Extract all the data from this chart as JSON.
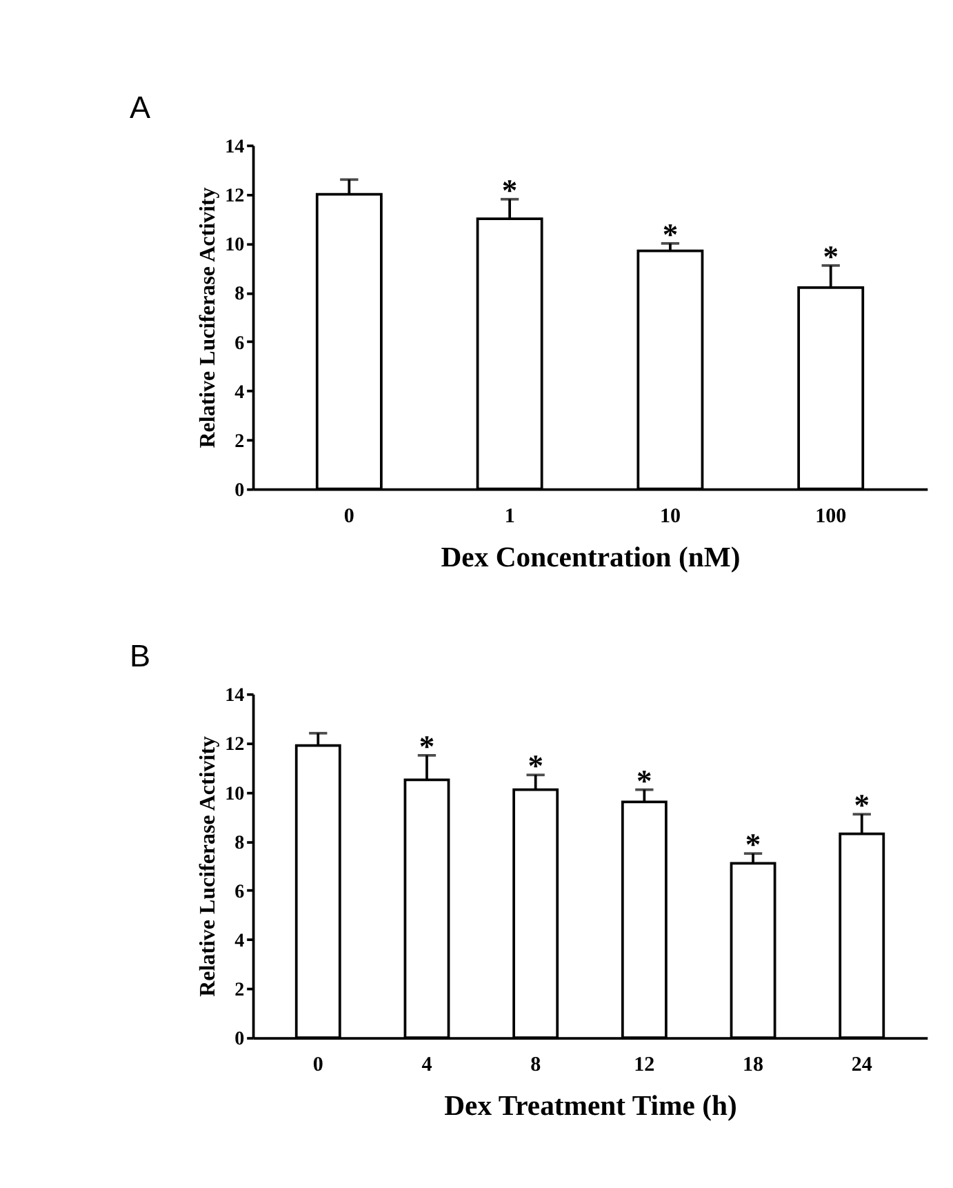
{
  "chart_data": [
    {
      "type": "bar",
      "xlabel": "Dex Concentration (nM)",
      "ylabel": "Relative Luciferase Activity",
      "categories": [
        "0",
        "1",
        "10",
        "100"
      ],
      "series": [
        {
          "color": "#ffffff",
          "values": [
            12.0,
            11.0,
            9.7,
            8.2
          ],
          "errors": [
            [
              12.0,
              12.6
            ],
            [
              11.0,
              11.8
            ],
            [
              9.7,
              10.0
            ],
            [
              8.2,
              9.1
            ]
          ]
        }
      ],
      "ylim": [
        0,
        14
      ],
      "yticks": [
        0,
        2,
        4,
        6,
        8,
        10,
        12,
        14
      ],
      "grid": false,
      "legend": false,
      "annotations": [
        "A",
        "*",
        "*",
        "*"
      ]
    },
    {
      "type": "bar",
      "xlabel": "Dex Treatment Time (h)",
      "ylabel": "Relative Luciferase Activity",
      "categories": [
        "0",
        "4",
        "8",
        "12",
        "18",
        "24"
      ],
      "series": [
        {
          "color": "#ffffff",
          "values": [
            11.9,
            10.5,
            10.1,
            9.6,
            7.1,
            8.3
          ],
          "errors": [
            [
              11.9,
              12.4
            ],
            [
              10.5,
              11.5
            ],
            [
              10.1,
              10.7
            ],
            [
              9.6,
              10.1
            ],
            [
              7.1,
              7.5
            ],
            [
              8.3,
              9.1
            ]
          ]
        }
      ],
      "ylim": [
        0,
        14
      ],
      "yticks": [
        0,
        2,
        4,
        6,
        8,
        10,
        12,
        14
      ],
      "grid": false,
      "legend": false,
      "annotations": [
        "B",
        "*",
        "*",
        "*",
        "*",
        "*"
      ]
    }
  ]
}
